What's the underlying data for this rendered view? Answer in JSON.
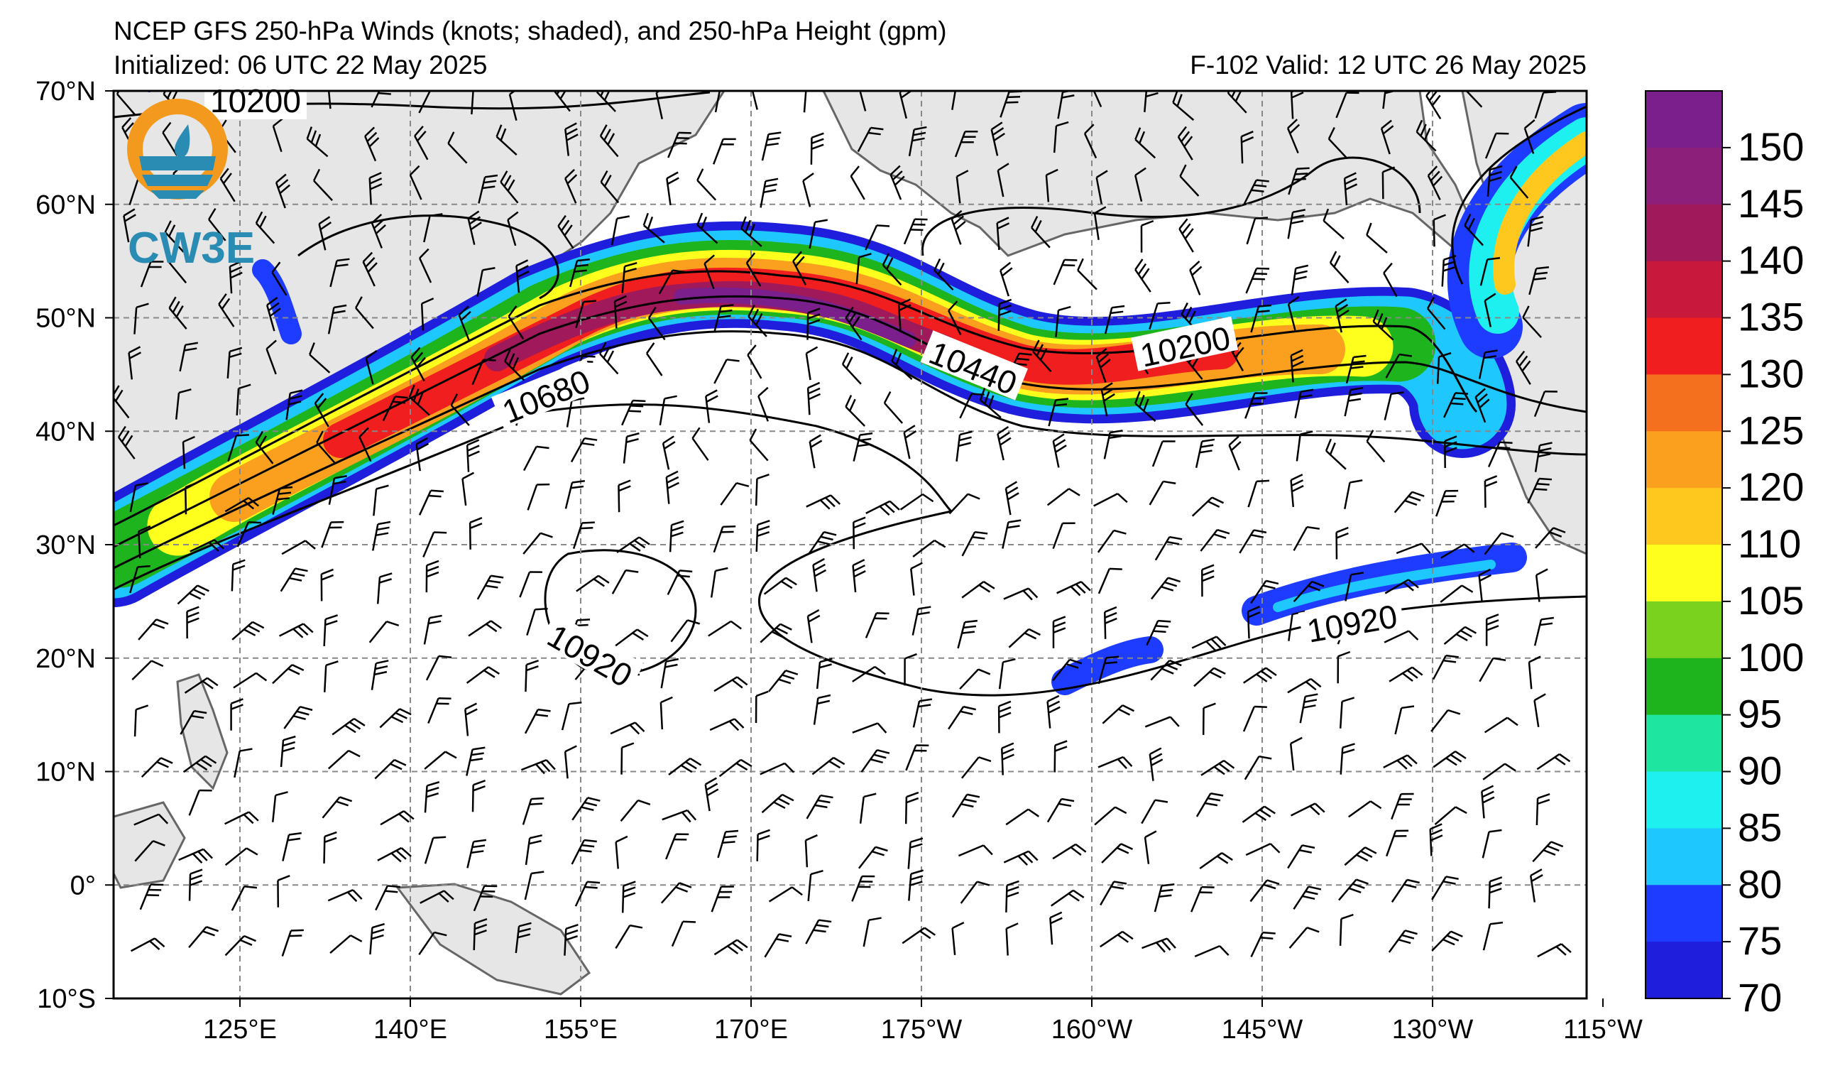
{
  "header": {
    "title": "NCEP GFS 250-hPa Winds (knots; shaded), and 250-hPa Height (gpm)",
    "initialized": "Initialized: 06 UTC 22 May 2025",
    "valid": "F-102  Valid: 12 UTC 26 May 2025"
  },
  "logo": {
    "text": "CW3E",
    "colors": {
      "ring": "#f39a1e",
      "wave": "#2a8bb3"
    }
  },
  "axes": {
    "lat_labels": [
      "70°N",
      "60°N",
      "50°N",
      "40°N",
      "30°N",
      "20°N",
      "10°N",
      "0°",
      "10°S"
    ],
    "lon_labels": [
      "125°E",
      "140°E",
      "155°E",
      "170°E",
      "175°W",
      "160°W",
      "145°W",
      "130°W",
      "115°W"
    ]
  },
  "contour_labels": [
    "10200",
    "10680",
    "10440",
    "10200",
    "10920",
    "10920"
  ],
  "colorbar": {
    "labels": [
      "150",
      "145",
      "140",
      "135",
      "130",
      "125",
      "120",
      "110",
      "105",
      "100",
      "95",
      "90",
      "85",
      "80",
      "75",
      "70"
    ],
    "colors": [
      "#7a1f8c",
      "#8c1f7a",
      "#a0195a",
      "#c8183c",
      "#f01e1e",
      "#f5701e",
      "#fba01e",
      "#ffc81e",
      "#ffff1e",
      "#7ad21e",
      "#1eb41e",
      "#1ee6a0",
      "#1ef0f0",
      "#1ec8ff",
      "#1e3cff",
      "#1e1edc"
    ]
  },
  "land_color": "#e6e6e6",
  "grid_color": "#888888"
}
